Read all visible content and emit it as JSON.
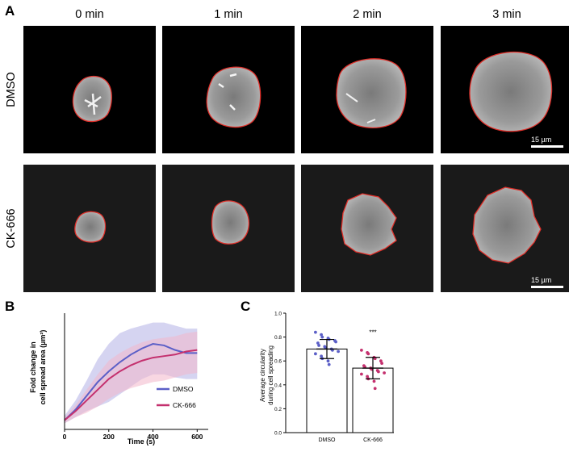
{
  "panel_labels": {
    "a": "A",
    "b": "B",
    "c": "C"
  },
  "panel_a": {
    "columns": [
      "0 min",
      "1 min",
      "2 min",
      "3 min"
    ],
    "rows": [
      "DMSO",
      "CK-666"
    ],
    "scale_bar_label": "15 µm",
    "outline_color": "#e0302a"
  },
  "chart_data": [
    {
      "panel": "B",
      "type": "line",
      "xlabel": "Time (s)",
      "ylabel_line1": "Fold change in",
      "ylabel_line2": "cell spread area (µm²)",
      "xlim": [
        0,
        650
      ],
      "ylim": [
        0.8,
        4.5
      ],
      "xticks": [
        0,
        200,
        400,
        600
      ],
      "x": [
        0,
        50,
        100,
        150,
        200,
        250,
        300,
        350,
        400,
        450,
        500,
        550,
        600
      ],
      "series": [
        {
          "name": "DMSO",
          "color": "#5b5fc7",
          "band_color": "#b3b1e6",
          "mean": [
            1.1,
            1.45,
            1.9,
            2.35,
            2.7,
            3.0,
            3.25,
            3.45,
            3.6,
            3.55,
            3.4,
            3.3,
            3.3
          ],
          "lower": [
            1.0,
            1.2,
            1.4,
            1.55,
            1.7,
            1.95,
            2.2,
            2.45,
            2.6,
            2.6,
            2.5,
            2.45,
            2.45
          ],
          "upper": [
            1.25,
            1.75,
            2.4,
            3.1,
            3.6,
            3.95,
            4.1,
            4.2,
            4.3,
            4.3,
            4.2,
            4.1,
            4.1
          ]
        },
        {
          "name": "CK-666",
          "color": "#c4306e",
          "band_color": "#f3b6cb",
          "mean": [
            1.1,
            1.4,
            1.75,
            2.1,
            2.45,
            2.7,
            2.9,
            3.05,
            3.15,
            3.2,
            3.25,
            3.35,
            3.4
          ],
          "lower": [
            1.0,
            1.2,
            1.35,
            1.55,
            1.8,
            2.0,
            2.15,
            2.25,
            2.35,
            2.4,
            2.5,
            2.6,
            2.65
          ],
          "upper": [
            1.2,
            1.6,
            2.1,
            2.6,
            3.05,
            3.3,
            3.5,
            3.65,
            3.75,
            3.8,
            3.85,
            3.95,
            4.0
          ]
        }
      ],
      "legend_position": "bottom-right"
    },
    {
      "panel": "C",
      "type": "bar",
      "ylabel_line1": "Average circularity",
      "ylabel_line2": "during cell spreading",
      "categories": [
        "DMSO",
        "CK-666"
      ],
      "values": [
        0.7,
        0.54
      ],
      "sd": [
        0.08,
        0.09
      ],
      "ylim": [
        0.0,
        1.0
      ],
      "yticks": [
        "0.0",
        "0.2",
        "0.4",
        "0.6",
        "0.8",
        "1.0"
      ],
      "significance": "***",
      "colors": [
        "#5b5fc7",
        "#c4306e"
      ],
      "points": [
        [
          0.84,
          0.82,
          0.8,
          0.79,
          0.78,
          0.77,
          0.76,
          0.75,
          0.73,
          0.72,
          0.71,
          0.7,
          0.69,
          0.68,
          0.66,
          0.64,
          0.62,
          0.6,
          0.57
        ],
        [
          0.69,
          0.67,
          0.66,
          0.63,
          0.62,
          0.6,
          0.58,
          0.56,
          0.55,
          0.54,
          0.53,
          0.52,
          0.51,
          0.5,
          0.49,
          0.47,
          0.45,
          0.43,
          0.37
        ]
      ]
    }
  ]
}
